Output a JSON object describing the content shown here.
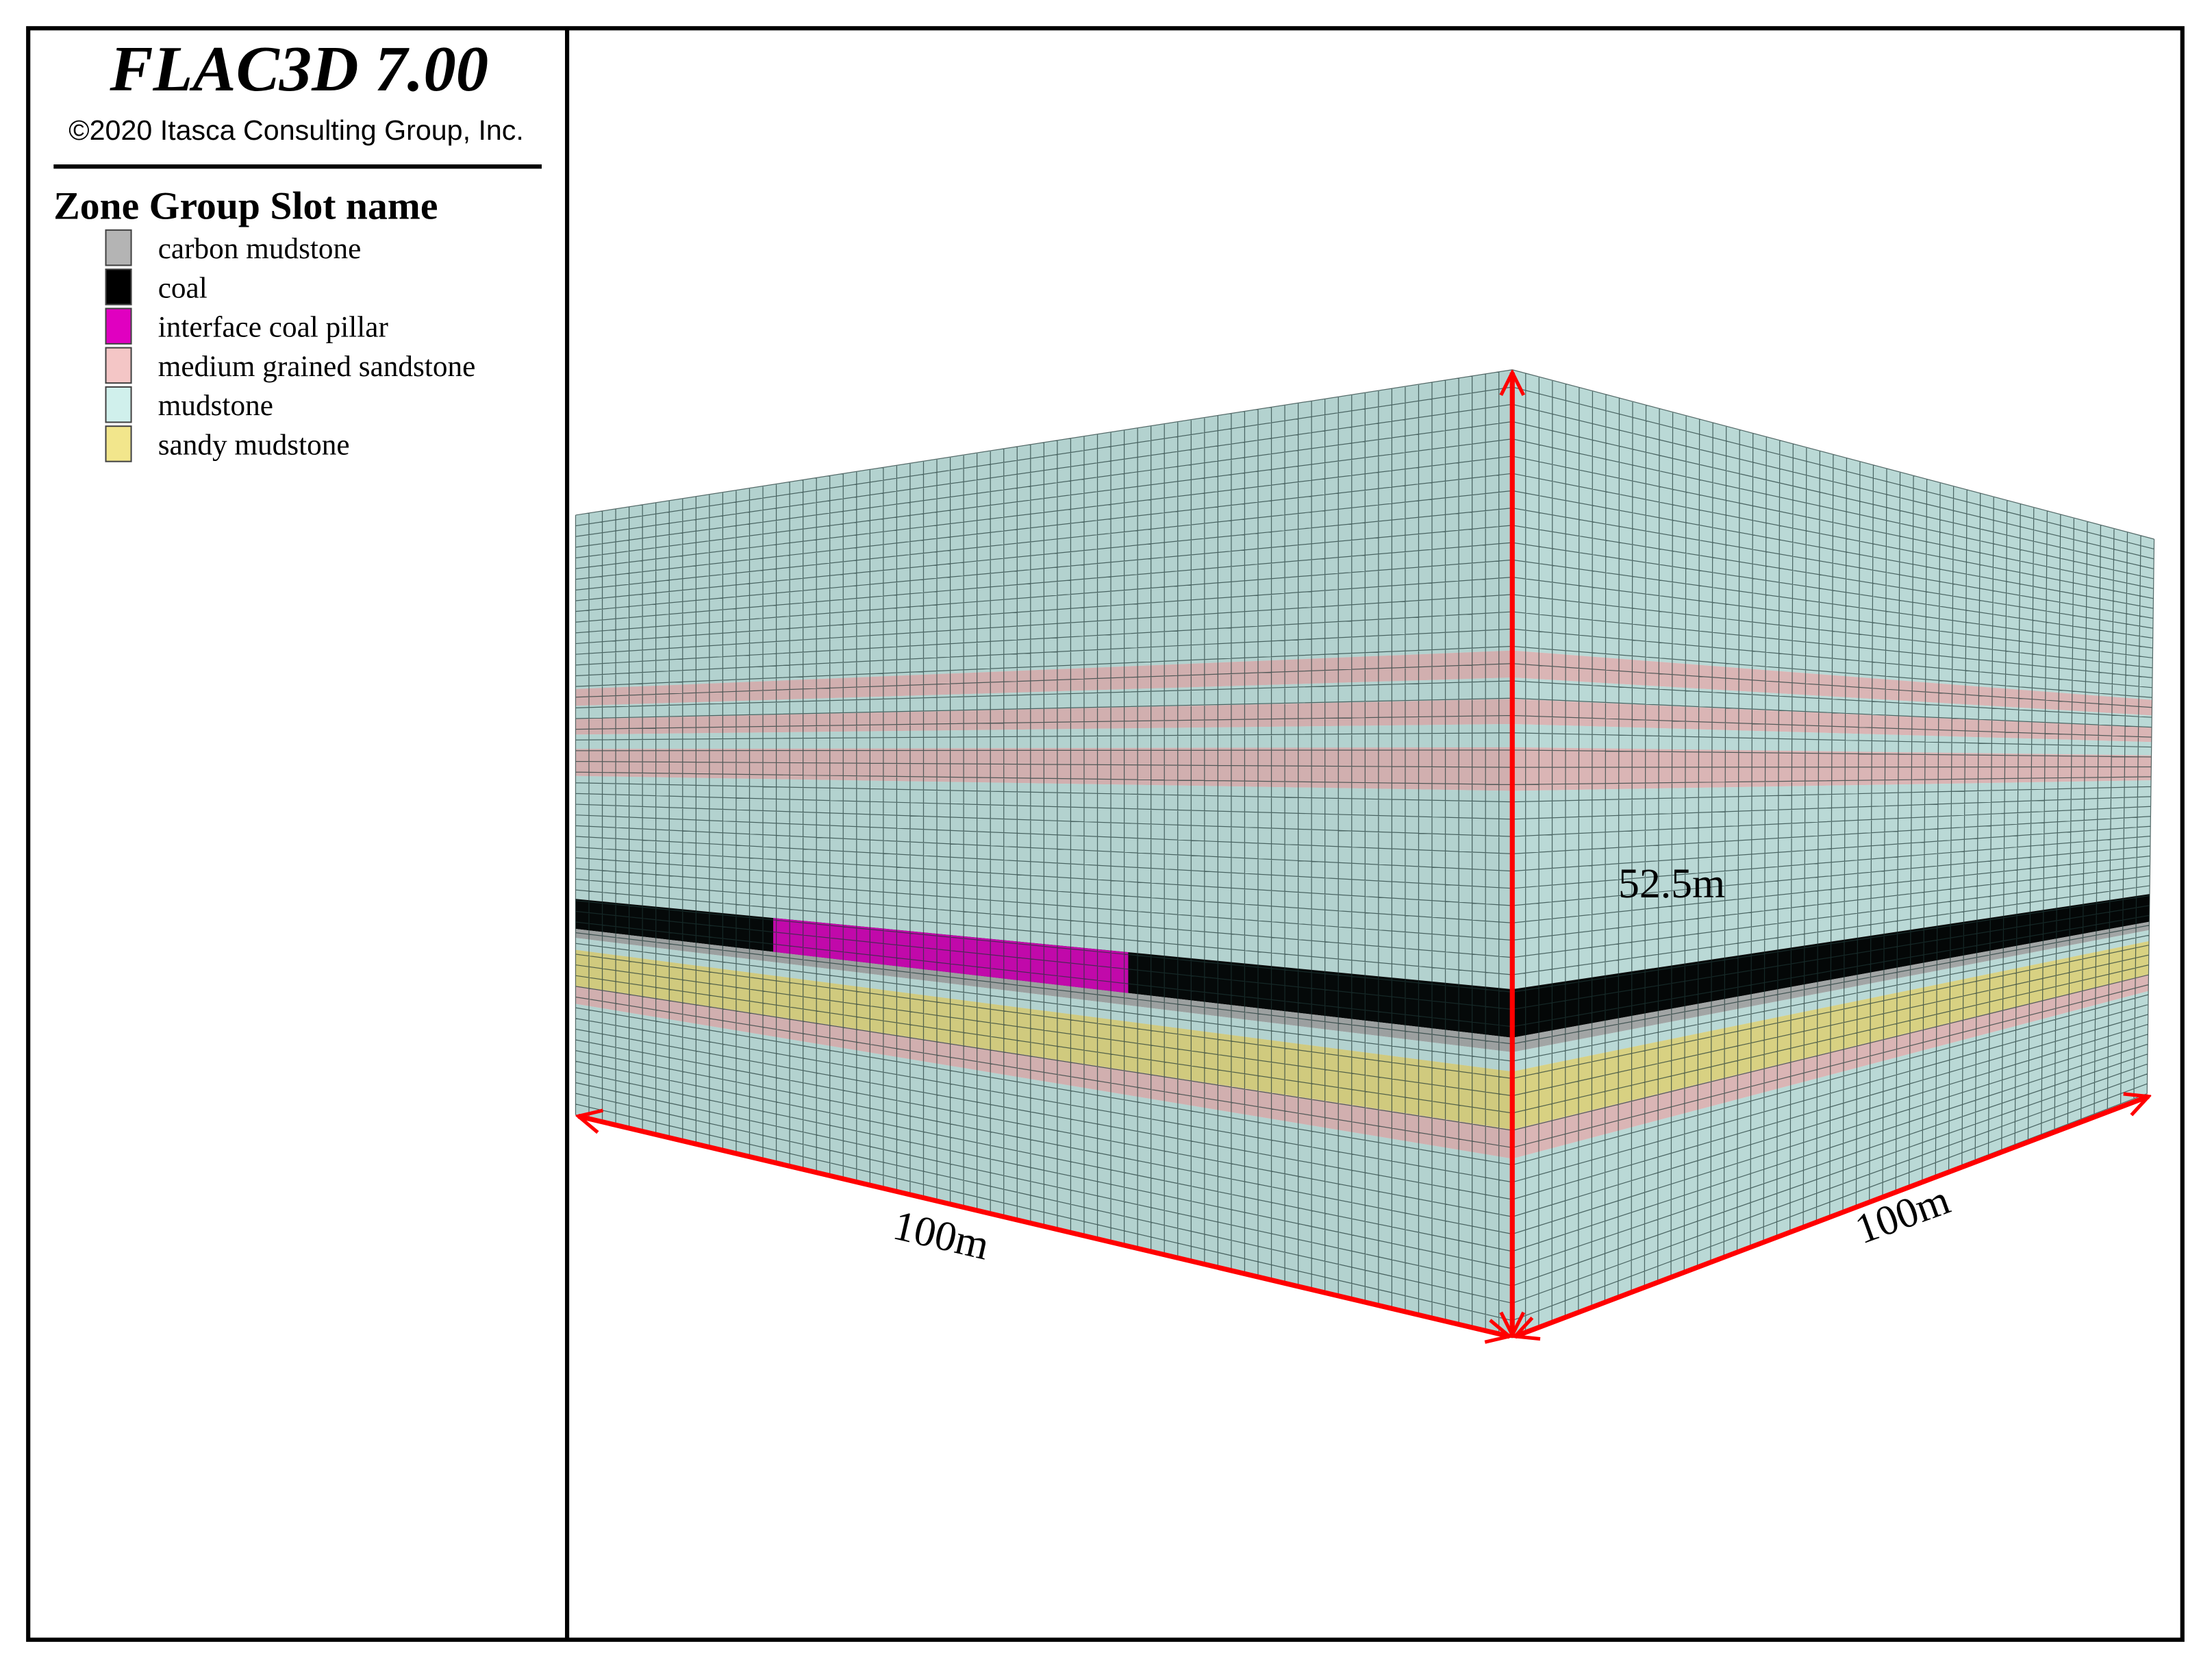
{
  "header": {
    "title": "FLAC3D 7.00",
    "copyright": "©2020 Itasca Consulting Group, Inc."
  },
  "legend": {
    "title": "Zone Group Slot name",
    "items": [
      {
        "label": "carbon mudstone",
        "color": "#b4b4b4"
      },
      {
        "label": "coal",
        "color": "#000000"
      },
      {
        "label": "interface coal pillar",
        "color": "#e000c0"
      },
      {
        "label": "medium grained sandstone",
        "color": "#f4c6c6"
      },
      {
        "label": "mudstone",
        "color": "#d0f0ec"
      },
      {
        "label": "sandy mudstone",
        "color": "#f2e68c"
      }
    ]
  },
  "dimensions": {
    "length": "100m",
    "width": "100m",
    "height": "52.5m"
  }
}
